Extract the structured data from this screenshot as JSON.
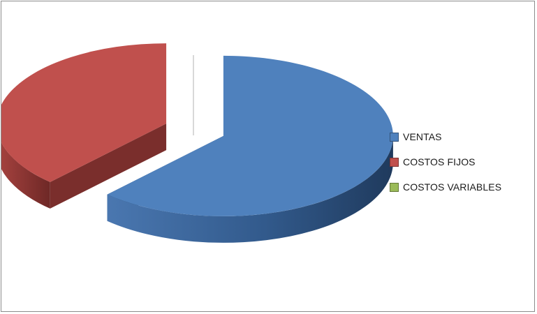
{
  "chart_data": {
    "type": "pie",
    "title": "",
    "style": "3d-exploded",
    "categories": [
      "VENTAS",
      "COSTOS FIJOS",
      "COSTOS VARIABLES"
    ],
    "values": [
      62,
      38,
      0
    ],
    "legend_position": "right",
    "colors": [
      "#4f81bd",
      "#c0504d",
      "#9bbb59"
    ],
    "side_colors": [
      "#2c4d75",
      "#7a2e2c",
      "#5f7530"
    ]
  }
}
